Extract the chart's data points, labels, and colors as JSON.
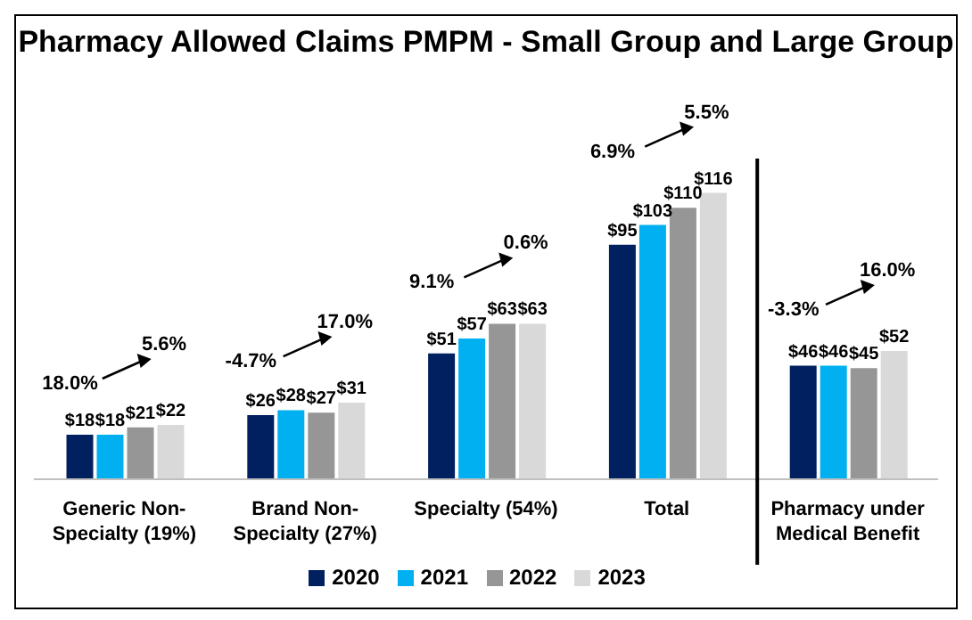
{
  "chart_data": {
    "type": "bar",
    "title": "Pharmacy Allowed Claims PMPM - Small Group and Large Group",
    "categories": [
      "Generic Non-Specialty (19%)",
      "Brand Non-Specialty (27%)",
      "Specialty (54%)",
      "Total",
      "Pharmacy under Medical Benefit"
    ],
    "series": [
      {
        "name": "2020",
        "color": "#002060",
        "values": [
          18,
          26,
          51,
          95,
          46
        ],
        "value_labels": [
          "$18",
          "$26",
          "$51",
          "$95",
          "$46"
        ]
      },
      {
        "name": "2021",
        "color": "#00b0f0",
        "values": [
          18,
          28,
          57,
          103,
          46
        ],
        "value_labels": [
          "$18",
          "$28",
          "$57",
          "$103",
          "$46"
        ]
      },
      {
        "name": "2022",
        "color": "#969696",
        "values": [
          21,
          27,
          63,
          110,
          45
        ],
        "value_labels": [
          "$21",
          "$27",
          "$63",
          "$110",
          "$45"
        ]
      },
      {
        "name": "2023",
        "color": "#d9d9d9",
        "values": [
          22,
          31,
          63,
          116,
          52
        ],
        "value_labels": [
          "$22",
          "$31",
          "$63",
          "$116",
          "$52"
        ]
      }
    ],
    "annotations": [
      "18.0%",
      "5.6%",
      "-4.7%",
      "17.0%",
      "9.1%",
      "0.6%",
      "6.9%",
      "5.5%",
      "-3.3%",
      "16.0%"
    ],
    "legend": "bottom"
  }
}
